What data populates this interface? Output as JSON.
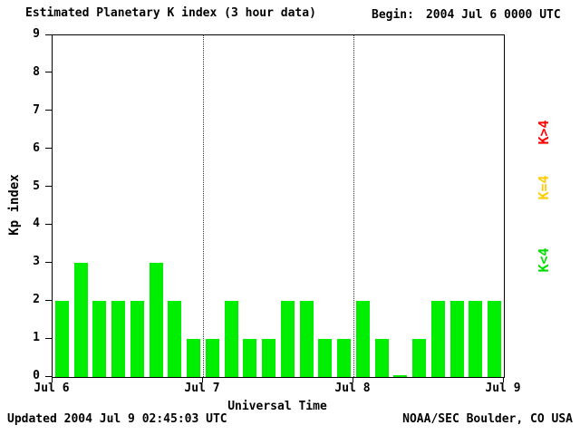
{
  "header": {
    "title": "Estimated Planetary K index (3 hour data)",
    "begin_label": "Begin:",
    "begin_value": "2004 Jul 6 0000 UTC"
  },
  "chart_data": {
    "type": "bar",
    "title": "Estimated Planetary K index (3 hour data)",
    "xlabel": "Universal Time",
    "ylabel": "Kp index",
    "ylim": [
      0,
      9
    ],
    "yticks": [
      0,
      1,
      2,
      3,
      4,
      5,
      6,
      7,
      8,
      9
    ],
    "x_day_labels": [
      "Jul 6",
      "Jul 7",
      "Jul 8",
      "Jul 9"
    ],
    "bars_per_day": 8,
    "bar_interval_hours": 3,
    "values": [
      2,
      3,
      2,
      2,
      2,
      3,
      2,
      1,
      1,
      2,
      1,
      1,
      2,
      2,
      1,
      1,
      2,
      1,
      0,
      1,
      2,
      2,
      2,
      2
    ],
    "bar_color": "#00ee00",
    "grid": "dotted vertical lines at interior day boundaries",
    "legend_position": "right",
    "legend": [
      {
        "label": "K>4",
        "color": "#ff0000"
      },
      {
        "label": "K=4",
        "color": "#ffcc00"
      },
      {
        "label": "K<4",
        "color": "#00dd00"
      }
    ]
  },
  "footer": {
    "updated": "Updated 2004 Jul 9 02:45:03 UTC",
    "source": "NOAA/SEC Boulder, CO USA"
  }
}
